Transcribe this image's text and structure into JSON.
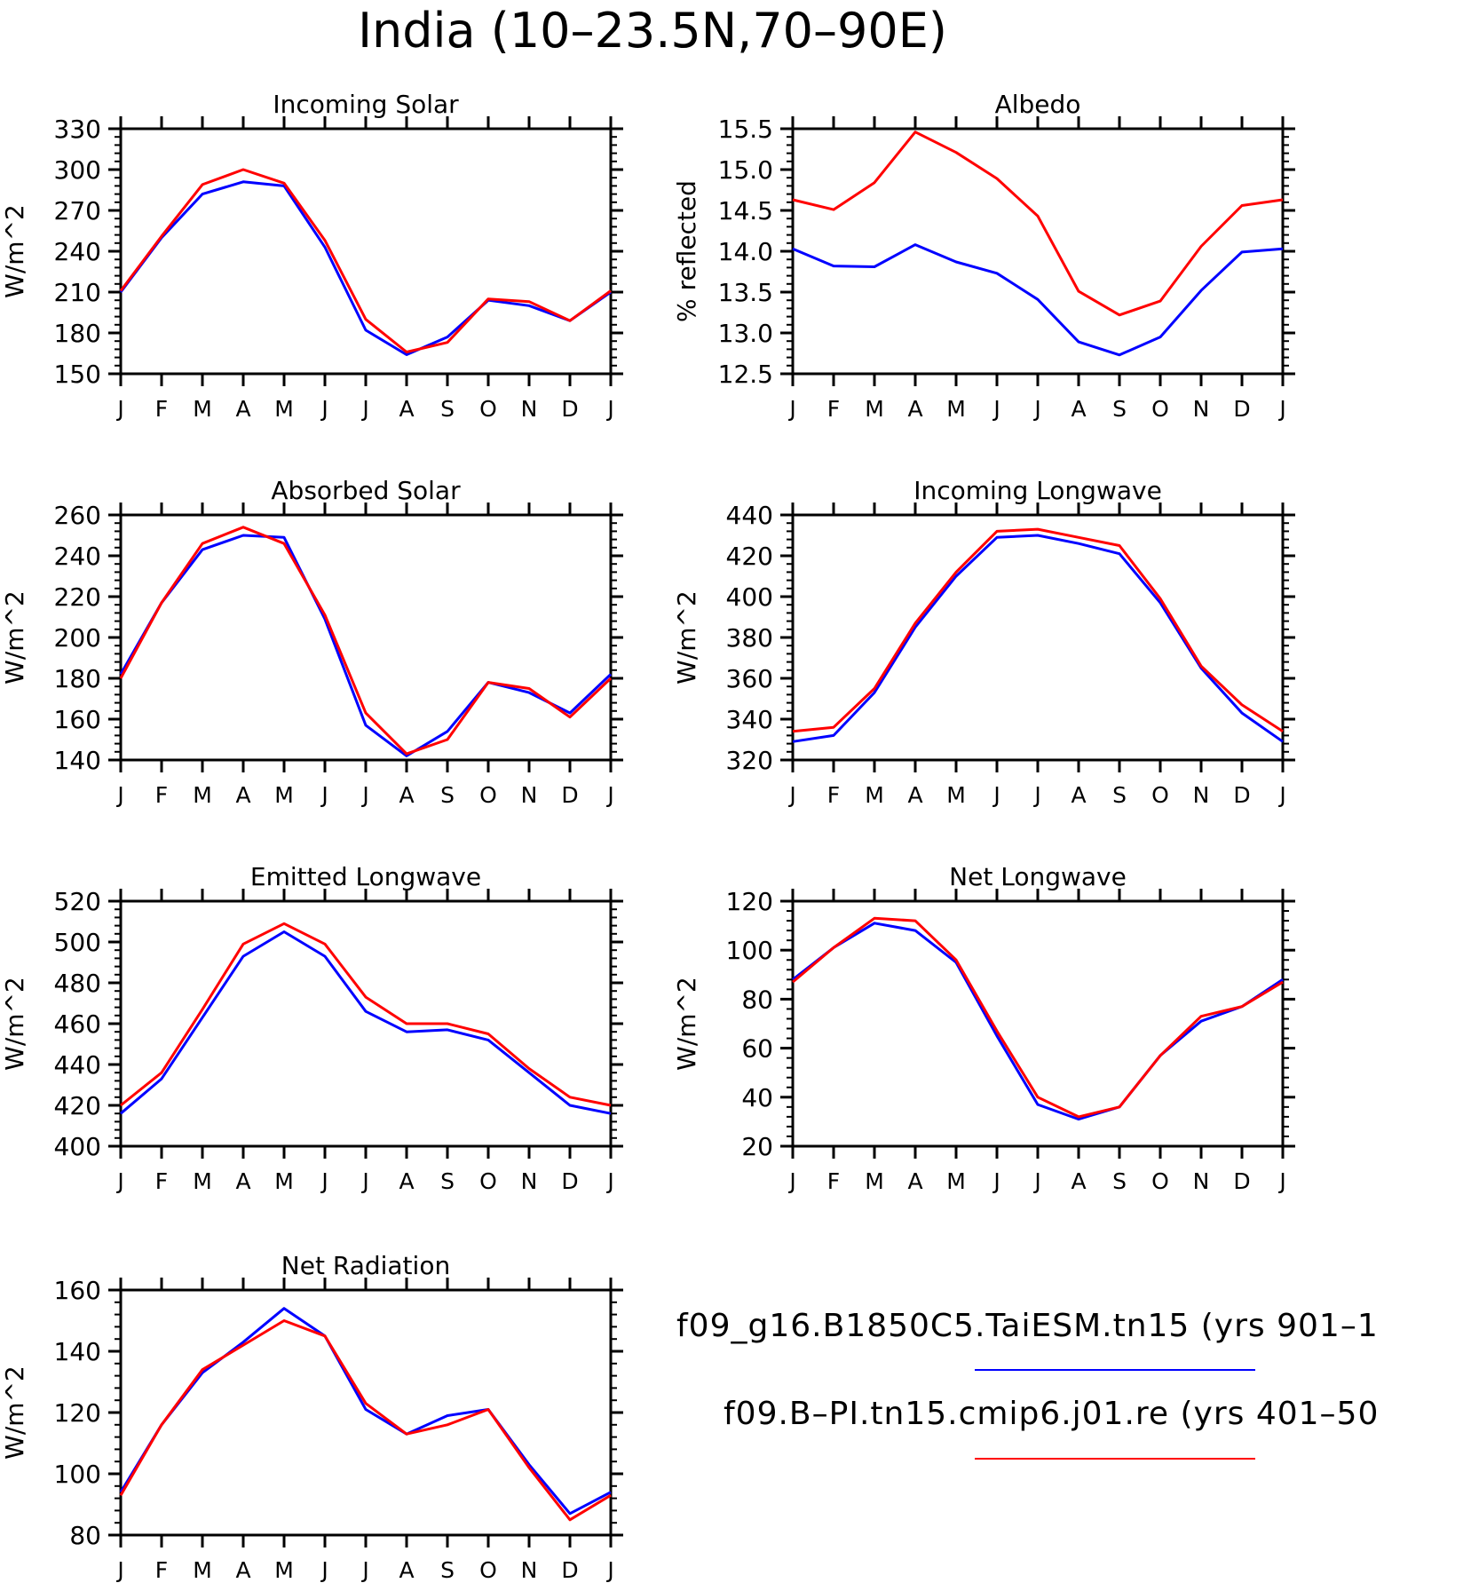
{
  "figure": {
    "title": "India (10–23.5N,70–90E)",
    "legend": [
      {
        "label": "f09_g16.B1850C5.TaiESM.tn15 (yrs 901–1",
        "color": "#0000ff"
      },
      {
        "label": "f09.B–PI.tn15.cmip6.j01.re (yrs 401–50",
        "color": "#ff0000"
      }
    ]
  },
  "colors": {
    "series_blue": "#0000ff",
    "series_red": "#ff0000",
    "axis": "#000000"
  },
  "chart_data": [
    {
      "type": "line",
      "title": "Incoming Solar",
      "ylabel": "W/m^2",
      "xlabel": "",
      "categories": [
        "J",
        "F",
        "M",
        "A",
        "M",
        "J",
        "J",
        "A",
        "S",
        "O",
        "N",
        "D",
        "J"
      ],
      "ylim": [
        150,
        330
      ],
      "yticks": [
        150,
        180,
        210,
        240,
        270,
        300,
        330
      ],
      "grid": false,
      "series": [
        {
          "color": "#0000ff",
          "values": [
            210,
            250,
            282,
            291,
            288,
            243,
            182,
            164,
            177,
            204,
            200,
            189,
            210
          ]
        },
        {
          "color": "#ff0000",
          "values": [
            211,
            251,
            289,
            300,
            290,
            248,
            190,
            166,
            173,
            205,
            203,
            189,
            211
          ]
        }
      ]
    },
    {
      "type": "line",
      "title": "Albedo",
      "ylabel": "% reflected",
      "xlabel": "",
      "categories": [
        "J",
        "F",
        "M",
        "A",
        "M",
        "J",
        "J",
        "A",
        "S",
        "O",
        "N",
        "D",
        "J"
      ],
      "ylim": [
        12.5,
        15.5
      ],
      "yticks": [
        "12.5",
        "13.0",
        "13.5",
        "14.0",
        "14.5",
        "15.0",
        "15.5"
      ],
      "grid": false,
      "series": [
        {
          "color": "#0000ff",
          "values": [
            14.03,
            13.82,
            13.81,
            14.08,
            13.87,
            13.73,
            13.41,
            12.89,
            12.73,
            12.95,
            13.52,
            13.99,
            14.03
          ]
        },
        {
          "color": "#ff0000",
          "values": [
            14.63,
            14.51,
            14.84,
            15.46,
            15.21,
            14.89,
            14.43,
            13.51,
            13.22,
            13.39,
            14.06,
            14.56,
            14.63
          ]
        }
      ]
    },
    {
      "type": "line",
      "title": "Absorbed Solar",
      "ylabel": "W/m^2",
      "xlabel": "",
      "categories": [
        "J",
        "F",
        "M",
        "A",
        "M",
        "J",
        "J",
        "A",
        "S",
        "O",
        "N",
        "D",
        "J"
      ],
      "ylim": [
        140,
        260
      ],
      "yticks": [
        140,
        160,
        180,
        200,
        220,
        240,
        260
      ],
      "grid": false,
      "series": [
        {
          "color": "#0000ff",
          "values": [
            182,
            217,
            243,
            250,
            249,
            209,
            157,
            142,
            154,
            178,
            173,
            163,
            182
          ]
        },
        {
          "color": "#ff0000",
          "values": [
            180,
            217,
            246,
            254,
            246,
            211,
            163,
            143,
            150,
            178,
            175,
            161,
            180
          ]
        }
      ]
    },
    {
      "type": "line",
      "title": "Incoming Longwave",
      "ylabel": "W/m^2",
      "xlabel": "",
      "categories": [
        "J",
        "F",
        "M",
        "A",
        "M",
        "J",
        "J",
        "A",
        "S",
        "O",
        "N",
        "D",
        "J"
      ],
      "ylim": [
        320,
        440
      ],
      "yticks": [
        320,
        340,
        360,
        380,
        400,
        420,
        440
      ],
      "grid": false,
      "series": [
        {
          "color": "#0000ff",
          "values": [
            329,
            332,
            353,
            385,
            410,
            429,
            430,
            426,
            421,
            397,
            365,
            343,
            329
          ]
        },
        {
          "color": "#ff0000",
          "values": [
            334,
            336,
            355,
            387,
            412,
            432,
            433,
            429,
            425,
            399,
            366,
            347,
            334
          ]
        }
      ]
    },
    {
      "type": "line",
      "title": "Emitted Longwave",
      "ylabel": "W/m^2",
      "xlabel": "",
      "categories": [
        "J",
        "F",
        "M",
        "A",
        "M",
        "J",
        "J",
        "A",
        "S",
        "O",
        "N",
        "D",
        "J"
      ],
      "ylim": [
        400,
        520
      ],
      "yticks": [
        400,
        420,
        440,
        460,
        480,
        500,
        520
      ],
      "grid": false,
      "series": [
        {
          "color": "#0000ff",
          "values": [
            416,
            433,
            463,
            493,
            505,
            493,
            466,
            456,
            457,
            452,
            436,
            420,
            416
          ]
        },
        {
          "color": "#ff0000",
          "values": [
            420,
            436,
            467,
            499,
            509,
            499,
            473,
            460,
            460,
            455,
            438,
            424,
            420
          ]
        }
      ]
    },
    {
      "type": "line",
      "title": "Net Longwave",
      "ylabel": "W/m^2",
      "xlabel": "",
      "categories": [
        "J",
        "F",
        "M",
        "A",
        "M",
        "J",
        "J",
        "A",
        "S",
        "O",
        "N",
        "D",
        "J"
      ],
      "ylim": [
        20,
        120
      ],
      "yticks": [
        20,
        40,
        60,
        80,
        100,
        120
      ],
      "grid": false,
      "series": [
        {
          "color": "#0000ff",
          "values": [
            88,
            101,
            111,
            108,
            95,
            65,
            37,
            31,
            36,
            57,
            71,
            77,
            88
          ]
        },
        {
          "color": "#ff0000",
          "values": [
            87,
            101,
            113,
            112,
            96,
            67,
            40,
            32,
            36,
            57,
            73,
            77,
            87
          ]
        }
      ]
    },
    {
      "type": "line",
      "title": "Net Radiation",
      "ylabel": "W/m^2",
      "xlabel": "",
      "categories": [
        "J",
        "F",
        "M",
        "A",
        "M",
        "J",
        "J",
        "A",
        "S",
        "O",
        "N",
        "D",
        "J"
      ],
      "ylim": [
        80,
        160
      ],
      "yticks": [
        80,
        100,
        120,
        140,
        160
      ],
      "grid": false,
      "series": [
        {
          "color": "#0000ff",
          "values": [
            94,
            116,
            133,
            143,
            154,
            145,
            121,
            113,
            119,
            121,
            103,
            87,
            94
          ]
        },
        {
          "color": "#ff0000",
          "values": [
            93,
            116,
            134,
            142,
            150,
            145,
            123,
            113,
            116,
            121,
            102,
            85,
            93
          ]
        }
      ]
    }
  ]
}
